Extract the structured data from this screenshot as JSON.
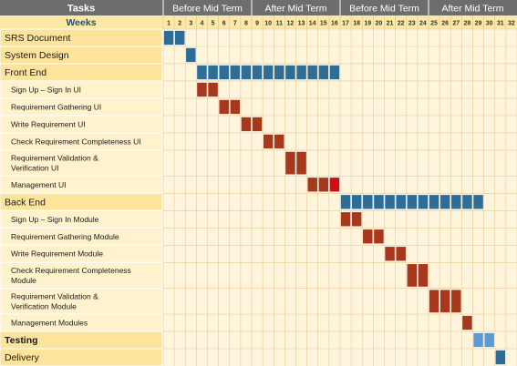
{
  "header": {
    "tasks_label": "Tasks",
    "weeks_label": "Weeks",
    "phases": [
      {
        "label": "Before Mid Term",
        "start": 1,
        "end": 8
      },
      {
        "label": "After Mid Term",
        "start": 9,
        "end": 16
      },
      {
        "label": "Before Mid Term",
        "start": 17,
        "end": 24
      },
      {
        "label": "After Mid Term",
        "start": 25,
        "end": 32
      }
    ],
    "week_numbers": [
      "1",
      "2",
      "3",
      "4",
      "5",
      "6",
      "7",
      "8",
      "9",
      "10",
      "11",
      "12",
      "13",
      "14",
      "15",
      "16",
      "17",
      "18",
      "19",
      "20",
      "21",
      "22",
      "23",
      "24",
      "25",
      "26",
      "27",
      "28",
      "29",
      "30",
      "31",
      "32"
    ]
  },
  "colors": {
    "header_bg": "#6d6d6d",
    "header_text": "#ffffff",
    "weeks_row_bg": "#fde9a6",
    "weeks_label_color": "#1f4e79",
    "task_bg_main": "#fde49a",
    "task_bg_sub": "#fff2cc",
    "grid_bg": "#fff4dc",
    "grid_line": "#e8cc95",
    "blue": "#2e6e96",
    "red": "#a8381b",
    "bright_red": "#cc1010",
    "light_blue": "#5b9bd5"
  },
  "chart_data": {
    "type": "gantt",
    "x_unit": "week",
    "x_range": [
      1,
      32
    ],
    "tasks": [
      {
        "name": "SRS Document",
        "level": "main",
        "bold": false,
        "bars": [
          {
            "start": 1,
            "end": 2,
            "color": "blue"
          }
        ]
      },
      {
        "name": "System Design",
        "level": "main",
        "bold": false,
        "bars": [
          {
            "start": 3,
            "end": 3,
            "color": "blue"
          }
        ]
      },
      {
        "name": "Front End",
        "level": "main",
        "bold": false,
        "bars": [
          {
            "start": 4,
            "end": 16,
            "color": "blue"
          }
        ]
      },
      {
        "name": "Sign Up – Sign In UI",
        "level": "sub",
        "bold": false,
        "bars": [
          {
            "start": 4,
            "end": 5,
            "color": "red"
          }
        ]
      },
      {
        "name": "Requirement Gathering UI",
        "level": "sub",
        "bold": false,
        "bars": [
          {
            "start": 6,
            "end": 7,
            "color": "red"
          }
        ]
      },
      {
        "name": "Write Requirement UI",
        "level": "sub",
        "bold": false,
        "bars": [
          {
            "start": 8,
            "end": 9,
            "color": "red"
          }
        ]
      },
      {
        "name": "Check Requirement Completeness UI",
        "level": "sub",
        "bold": false,
        "bars": [
          {
            "start": 10,
            "end": 11,
            "color": "red"
          }
        ]
      },
      {
        "name": "Requirement Validation & Verification UI",
        "level": "sub",
        "bold": false,
        "bars": [
          {
            "start": 12,
            "end": 13,
            "color": "red"
          }
        ]
      },
      {
        "name": "Management UI",
        "level": "sub",
        "bold": false,
        "bars": [
          {
            "start": 14,
            "end": 15,
            "color": "red"
          },
          {
            "start": 16,
            "end": 16,
            "color": "bright_red"
          }
        ]
      },
      {
        "name": "Back End",
        "level": "main",
        "bold": false,
        "bars": [
          {
            "start": 17,
            "end": 29,
            "color": "blue"
          }
        ]
      },
      {
        "name": "Sign Up – Sign In Module",
        "level": "sub",
        "bold": false,
        "bars": [
          {
            "start": 17,
            "end": 18,
            "color": "red"
          }
        ]
      },
      {
        "name": "Requirement Gathering Module",
        "level": "sub",
        "bold": false,
        "bars": [
          {
            "start": 19,
            "end": 20,
            "color": "red"
          }
        ]
      },
      {
        "name": "Write Requirement Module",
        "level": "sub",
        "bold": false,
        "bars": [
          {
            "start": 21,
            "end": 22,
            "color": "red"
          }
        ]
      },
      {
        "name": "Check Requirement Completeness Module",
        "level": "sub",
        "bold": false,
        "bars": [
          {
            "start": 23,
            "end": 24,
            "color": "red"
          }
        ]
      },
      {
        "name": "Requirement Validation & Verification Module",
        "level": "sub",
        "bold": false,
        "bars": [
          {
            "start": 25,
            "end": 27,
            "color": "red"
          }
        ]
      },
      {
        "name": "Management Modules",
        "level": "sub",
        "bold": false,
        "bars": [
          {
            "start": 28,
            "end": 28,
            "color": "red"
          }
        ]
      },
      {
        "name": "Testing",
        "level": "main",
        "bold": true,
        "bars": [
          {
            "start": 29,
            "end": 30,
            "color": "light_blue"
          }
        ]
      },
      {
        "name": "Delivery",
        "level": "main",
        "bold": false,
        "bars": [
          {
            "start": 31,
            "end": 31,
            "color": "blue"
          }
        ]
      }
    ]
  }
}
